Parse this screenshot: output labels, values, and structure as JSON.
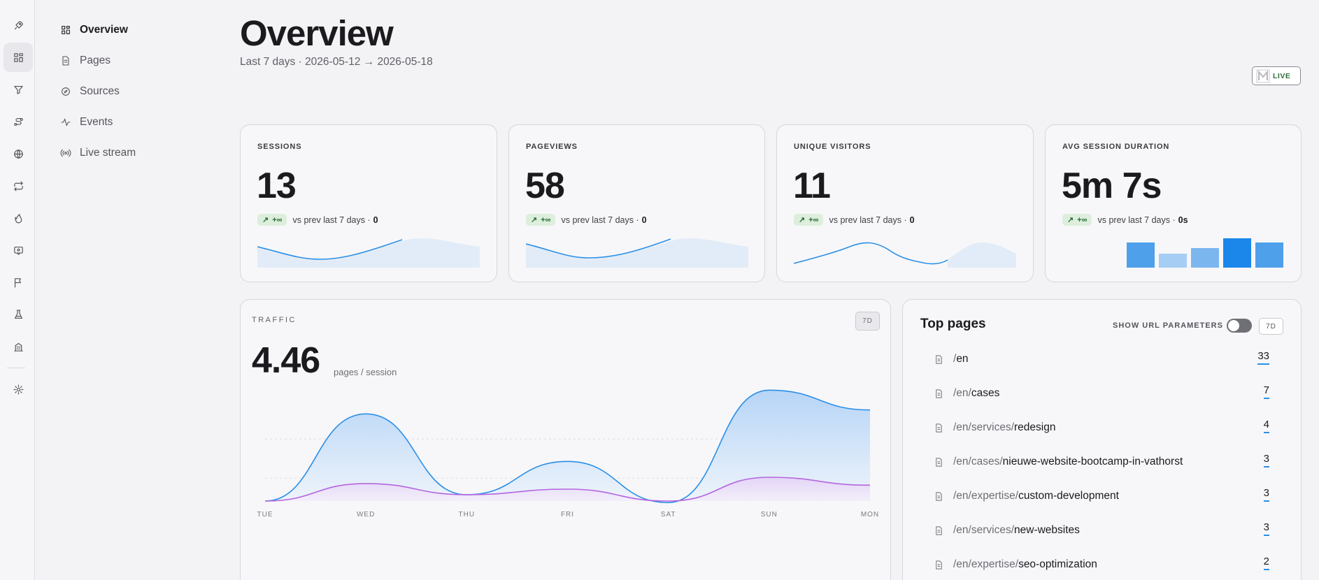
{
  "rail": {
    "icons": [
      "rocket-icon",
      "grid-icon",
      "filter-icon",
      "route-icon",
      "globe-icon",
      "repeat-icon",
      "flame-icon",
      "message-icon",
      "flag-icon",
      "flask-icon",
      "building-icon",
      "gear-icon"
    ]
  },
  "nav": {
    "items": [
      {
        "label": "Overview",
        "icon": "grid-icon",
        "active": true
      },
      {
        "label": "Pages",
        "icon": "file-icon",
        "active": false
      },
      {
        "label": "Sources",
        "icon": "compass-icon",
        "active": false
      },
      {
        "label": "Events",
        "icon": "activity-icon",
        "active": false
      },
      {
        "label": "Live stream",
        "icon": "broadcast-icon",
        "active": false
      }
    ]
  },
  "header": {
    "title": "Overview",
    "subtitle": "Last 7 days · 2026-05-12 → 2026-05-18",
    "live_label": "LIVE"
  },
  "stats": [
    {
      "label": "SESSIONS",
      "value": "13",
      "delta": "+∞",
      "vs_text": "vs prev last 7 days ·",
      "prev": "0"
    },
    {
      "label": "PAGEVIEWS",
      "value": "58",
      "delta": "+∞",
      "vs_text": "vs prev last 7 days ·",
      "prev": "0"
    },
    {
      "label": "UNIQUE VISITORS",
      "value": "11",
      "delta": "+∞",
      "vs_text": "vs prev last 7 days ·",
      "prev": "0"
    },
    {
      "label": "AVG SESSION DURATION",
      "value": "5m 7s",
      "delta": "+∞",
      "vs_text": "vs prev last 7 days ·",
      "prev": "0s"
    }
  ],
  "traffic": {
    "label": "TRAFFIC",
    "range": "7D",
    "value": "4.46",
    "unit": "pages / session"
  },
  "chart_data": {
    "type": "area",
    "x": [
      "TUE",
      "WED",
      "THU",
      "FRI",
      "SAT",
      "SUN",
      "MON"
    ],
    "series": [
      {
        "values": [
          0,
          11,
          0.8,
          5,
          -0.2,
          14,
          11.5
        ],
        "color": "#2b8fe6"
      },
      {
        "values": [
          0,
          2.2,
          0.8,
          1.5,
          0,
          3,
          2
        ],
        "color": "#b565e0"
      }
    ],
    "ylim": [
      0,
      15
    ],
    "grid": true
  },
  "top_pages": {
    "title": "Top pages",
    "option_label": "SHOW URL PARAMETERS",
    "range": "7D",
    "rows": [
      {
        "prefix": "/",
        "name": "en",
        "count": "33"
      },
      {
        "prefix": "/en/",
        "name": "cases",
        "count": "7"
      },
      {
        "prefix": "/en/services/",
        "name": "redesign",
        "count": "4"
      },
      {
        "prefix": "/en/cases/",
        "name": "nieuwe-website-bootcamp-in-vathorst",
        "count": "3"
      },
      {
        "prefix": "/en/expertise/",
        "name": "custom-development",
        "count": "3"
      },
      {
        "prefix": "/en/services/",
        "name": "new-websites",
        "count": "3"
      },
      {
        "prefix": "/en/expertise/",
        "name": "seo-optimization",
        "count": "2"
      }
    ]
  },
  "colors": {
    "accent": "#2b8fe6",
    "secondary": "#b565e0",
    "positive": "#256b32"
  }
}
